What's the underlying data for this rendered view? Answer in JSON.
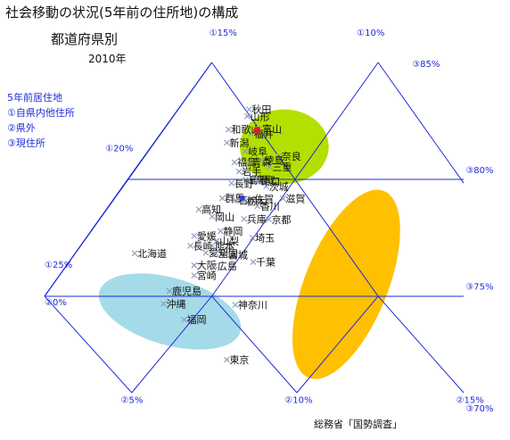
{
  "title": "社会移動の状況(5年前の住所地)の構成",
  "subtitle": "都道府県別",
  "year": "2010年",
  "legend": {
    "heading": "5年前居住地",
    "items": [
      "①自県内他住所",
      "②県外",
      "③現住所"
    ]
  },
  "source": "総務省「国勢調査」",
  "chart_data": {
    "type": "scatter",
    "subtype": "ternary",
    "axes": {
      "a": {
        "name": "①自県内他住所",
        "ticks": [
          "①10%",
          "①15%",
          "①20%",
          "①25%"
        ]
      },
      "b": {
        "name": "②県外",
        "ticks": [
          "②0%",
          "②5%",
          "②10%",
          "②15%"
        ]
      },
      "c": {
        "name": "③現住所",
        "ticks": [
          "③70%",
          "③75%",
          "③80%",
          "③85%"
        ]
      }
    },
    "regions": [
      {
        "color": "#b3e000",
        "label": "green"
      },
      {
        "color": "#ffc000",
        "label": "orange"
      },
      {
        "color": "#a5dbe8",
        "label": "blue"
      }
    ],
    "marker_color": "#8899bb",
    "highlight_colors": [
      "#e02020",
      "#2a3de0"
    ],
    "points": [
      {
        "label": "秋田",
        "u": 0.488,
        "v": 0.142
      },
      {
        "label": "山形",
        "u": 0.484,
        "v": 0.163
      },
      {
        "label": "福井",
        "u": 0.493,
        "v": 0.216
      },
      {
        "label": "富山",
        "u": 0.513,
        "v": 0.201
      },
      {
        "label": "和歌山",
        "u": 0.439,
        "v": 0.203
      },
      {
        "label": "新潟",
        "u": 0.435,
        "v": 0.243
      },
      {
        "label": "岐阜",
        "u": 0.479,
        "v": 0.269
      },
      {
        "label": "奈良",
        "u": 0.559,
        "v": 0.284
      },
      {
        "label": "福島",
        "u": 0.453,
        "v": 0.302
      },
      {
        "label": "青森",
        "u": 0.488,
        "v": 0.302
      },
      {
        "label": "徳島",
        "u": 0.518,
        "v": 0.296
      },
      {
        "label": "三重",
        "u": 0.537,
        "v": 0.316
      },
      {
        "label": "岩手",
        "u": 0.464,
        "v": 0.33
      },
      {
        "label": "鳥取",
        "u": 0.497,
        "v": 0.355
      },
      {
        "label": "島根",
        "u": 0.48,
        "v": 0.355
      },
      {
        "label": "長野",
        "u": 0.446,
        "v": 0.366
      },
      {
        "label": "山口",
        "u": 0.509,
        "v": 0.359
      },
      {
        "label": "茨城",
        "u": 0.529,
        "v": 0.375
      },
      {
        "label": "群馬",
        "u": 0.424,
        "v": 0.411
      },
      {
        "label": "石川",
        "u": 0.455,
        "v": 0.418
      },
      {
        "label": "佐賀",
        "u": 0.494,
        "v": 0.413
      },
      {
        "label": "滋賀",
        "u": 0.569,
        "v": 0.412
      },
      {
        "label": "栃木",
        "u": 0.475,
        "v": 0.42
      },
      {
        "label": "香川",
        "u": 0.508,
        "v": 0.435
      },
      {
        "label": "高知",
        "u": 0.368,
        "v": 0.445
      },
      {
        "label": "岡山",
        "u": 0.4,
        "v": 0.467
      },
      {
        "label": "兵庫",
        "u": 0.476,
        "v": 0.474
      },
      {
        "label": "京都",
        "u": 0.535,
        "v": 0.475
      },
      {
        "label": "静岡",
        "u": 0.42,
        "v": 0.511
      },
      {
        "label": "愛媛",
        "u": 0.357,
        "v": 0.525
      },
      {
        "label": "埼玉",
        "u": 0.496,
        "v": 0.531
      },
      {
        "label": "山梨",
        "u": 0.411,
        "v": 0.54
      },
      {
        "label": "長崎",
        "u": 0.348,
        "v": 0.555
      },
      {
        "label": "熊本",
        "u": 0.4,
        "v": 0.555
      },
      {
        "label": "北海道",
        "u": 0.215,
        "v": 0.578
      },
      {
        "label": "愛知",
        "u": 0.385,
        "v": 0.576
      },
      {
        "label": "全国",
        "u": 0.408,
        "v": 0.578
      },
      {
        "label": "宮城",
        "u": 0.432,
        "v": 0.582
      },
      {
        "label": "千葉",
        "u": 0.498,
        "v": 0.604
      },
      {
        "label": "大阪",
        "u": 0.357,
        "v": 0.614
      },
      {
        "label": "広島",
        "u": 0.406,
        "v": 0.616
      },
      {
        "label": "宮崎",
        "u": 0.357,
        "v": 0.645
      },
      {
        "label": "鹿児島",
        "u": 0.298,
        "v": 0.692
      },
      {
        "label": "沖縄",
        "u": 0.284,
        "v": 0.731
      },
      {
        "label": "神奈川",
        "u": 0.455,
        "v": 0.734
      },
      {
        "label": "福岡",
        "u": 0.333,
        "v": 0.779
      },
      {
        "label": "東京",
        "u": 0.435,
        "v": 0.9
      }
    ]
  }
}
